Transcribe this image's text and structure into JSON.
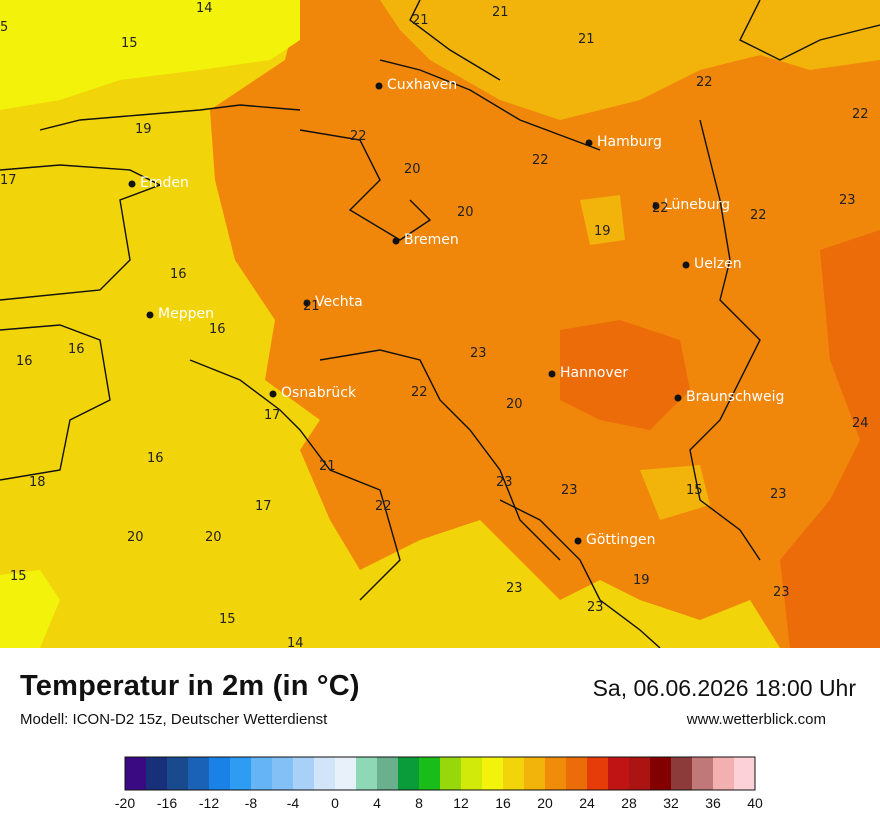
{
  "title": "Temperatur in 2m (in °C)",
  "subtitle": "Modell: ICON-D2 15z, Deutscher Wetterdienst",
  "datetime": "Sa, 06.06.2026 18:00 Uhr",
  "site": "www.wetterblick.com",
  "cities": [
    {
      "name": "Cuxhaven",
      "dot": "city-dot-cuxhaven"
    },
    {
      "name": "Hamburg",
      "dot": "city-dot-hamburg"
    },
    {
      "name": "Emden",
      "dot": "city-dot-emden"
    },
    {
      "name": "Lüneburg",
      "dot": "city-dot-lueneburg"
    },
    {
      "name": "Bremen",
      "dot": "city-dot-bremen"
    },
    {
      "name": "Uelzen",
      "dot": "city-dot-uelzen"
    },
    {
      "name": "Vechta",
      "dot": "city-dot-vechta"
    },
    {
      "name": "Meppen",
      "dot": "city-dot-meppen"
    },
    {
      "name": "Hannover",
      "dot": "city-dot-hannover"
    },
    {
      "name": "Osnabrück",
      "dot": "city-dot-osnabrueck"
    },
    {
      "name": "Braunschweig",
      "dot": "city-dot-braunschweig"
    },
    {
      "name": "Göttingen",
      "dot": "city-dot-goettingen"
    }
  ],
  "temps": [
    "14",
    "5",
    "15",
    "21",
    "21",
    "21",
    "22",
    "22",
    "19",
    "22",
    "17",
    "22",
    "20",
    "20",
    "22",
    "23",
    "19",
    "22",
    "16",
    "21",
    "16",
    "23",
    "16",
    "16",
    "22",
    "20",
    "24",
    "17",
    "21",
    "16",
    "18",
    "17",
    "22",
    "23",
    "23",
    "15",
    "23",
    "20",
    "20",
    "23",
    "19",
    "15",
    "23",
    "15",
    "23",
    "14"
  ],
  "legend": {
    "colors": [
      "#3a0a82",
      "#18307a",
      "#1a4a8e",
      "#1a62b8",
      "#1a82e6",
      "#2e9cf2",
      "#64b4f6",
      "#82c0f6",
      "#a8d0f8",
      "#d2e4fa",
      "#e8f0fa",
      "#8ed8b8",
      "#6ab08e",
      "#0a9c3a",
      "#1abc1a",
      "#96d80a",
      "#d2ea0a",
      "#f2f20a",
      "#f2d40a",
      "#f2b40a",
      "#f08c0a",
      "#ec6c0a",
      "#e63c0a",
      "#c01414",
      "#ac1414",
      "#820000",
      "#8c3a3a",
      "#c07878",
      "#f2b0b0",
      "#fcd2d8"
    ],
    "ticks": [
      "-20",
      "-16",
      "-12",
      "-8",
      "-4",
      "0",
      "4",
      "8",
      "12",
      "16",
      "20",
      "24",
      "28",
      "32",
      "36",
      "40"
    ]
  }
}
